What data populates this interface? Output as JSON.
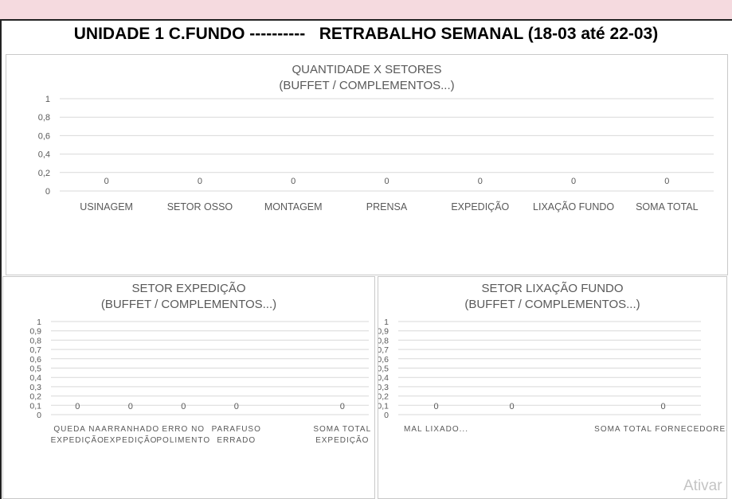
{
  "header": {
    "title": "UNIDADE 1 C.FUNDO ----------   RETRABALHO SEMANAL (18-03 até 22-03)"
  },
  "watermark": "Ativar",
  "chart_data": [
    {
      "id": "quantidade",
      "type": "bar",
      "title": "QUANTIDADE X SETORES",
      "subtitle": "(BUFFET / COMPLEMENTOS...)",
      "categories": [
        "USINAGEM",
        "SETOR OSSO",
        "MONTAGEM",
        "PRENSA",
        "EXPEDIÇÃO",
        "LIXAÇÃO FUNDO",
        "SOMA TOTAL"
      ],
      "values": [
        0,
        0,
        0,
        0,
        0,
        0,
        0
      ],
      "ylim": [
        0,
        1
      ],
      "yticks": [
        "0",
        "0,2",
        "0,4",
        "0,6",
        "0,8",
        "1"
      ],
      "grid": true,
      "colors": {
        "grid": "#d9d9d9",
        "text": "#595959"
      }
    },
    {
      "id": "expedicao",
      "type": "bar",
      "title": "SETOR EXPEDIÇÃO",
      "subtitle": "(BUFFET / COMPLEMENTOS...)",
      "categories": [
        [
          "QUEDA NA",
          "EXPEDIÇÃO"
        ],
        [
          "ARRANHADO",
          "EXPEDIÇÃO"
        ],
        [
          "ERRO NO",
          "POLIMENTO"
        ],
        [
          "PARAFUSO",
          "ERRADO"
        ],
        [
          "",
          ""
        ],
        [
          "SOMA TOTAL",
          "EXPEDIÇÃO"
        ]
      ],
      "values": [
        0,
        0,
        0,
        0,
        null,
        0
      ],
      "value_labels": [
        "0",
        "0",
        "0",
        "0",
        "",
        "0"
      ],
      "ylim": [
        0,
        1
      ],
      "yticks": [
        "0",
        "0,1",
        "0,2",
        "0,3",
        "0,4",
        "0,5",
        "0,6",
        "0,7",
        "0,8",
        "0,9",
        "1"
      ],
      "grid": true,
      "colors": {
        "grid": "#d9d9d9",
        "text": "#595959"
      }
    },
    {
      "id": "lixacao",
      "type": "bar",
      "title": "SETOR LIXAÇÃO FUNDO",
      "subtitle": "(BUFFET / COMPLEMENTOS...)",
      "categories": [
        [
          "MAL LIXADO..."
        ],
        [
          ""
        ],
        [
          ""
        ],
        [
          "SOMA TOTAL FORNECEDORES"
        ]
      ],
      "values": [
        0,
        0,
        null,
        0
      ],
      "value_labels": [
        "0",
        "0",
        "",
        "0"
      ],
      "ylim": [
        0,
        1
      ],
      "yticks": [
        "0",
        "0,1",
        "0,2",
        "0,3",
        "0,4",
        "0,5",
        "0,6",
        "0,7",
        "0,8",
        "0,9",
        "1"
      ],
      "grid": true,
      "colors": {
        "grid": "#d9d9d9",
        "text": "#595959"
      }
    }
  ]
}
